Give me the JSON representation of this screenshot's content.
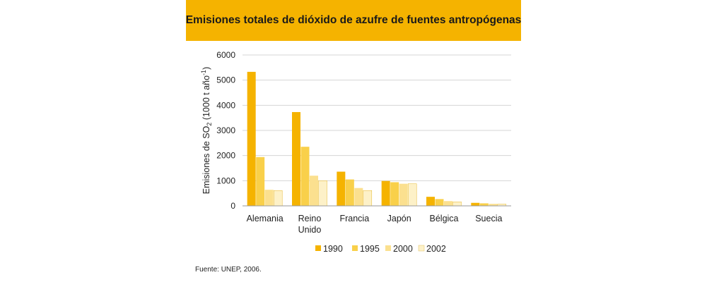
{
  "chart_data": {
    "type": "bar",
    "title": "Emisiones totales de dióxido de azufre de fuentes antropógenas",
    "ylabel": {
      "prefix": "Emisiones de SO",
      "sub": "2",
      "middle": " (1000 t año",
      "sup": "-1",
      "suffix": ")"
    },
    "ylim": [
      0,
      6000
    ],
    "yticks": [
      "0",
      "1000",
      "2000",
      "3000",
      "4000",
      "5000",
      "6000"
    ],
    "grid": true,
    "legend_position": "bottom",
    "categories": [
      "Alemania",
      "Reino Unido",
      "Francia",
      "Japón",
      "Bélgica",
      "Suecia"
    ],
    "category_lines": [
      [
        "Alemania"
      ],
      [
        "Reino",
        "Unido"
      ],
      [
        "Francia"
      ],
      [
        "Japón"
      ],
      [
        "Bélgica"
      ],
      [
        "Suecia"
      ]
    ],
    "series": [
      {
        "name": "1990",
        "color": "#f5b300",
        "values": [
          5330,
          3730,
          1360,
          990,
          360,
          120
        ]
      },
      {
        "name": "1995",
        "color": "#f9d04a",
        "values": [
          1940,
          2350,
          1050,
          940,
          270,
          100
        ]
      },
      {
        "name": "2000",
        "color": "#fbe08f",
        "values": [
          640,
          1200,
          710,
          880,
          190,
          80
        ]
      },
      {
        "name": "2002",
        "color": "#fdf1c8",
        "values": [
          610,
          1000,
          610,
          880,
          160,
          70
        ]
      }
    ],
    "source": "Fuente: UNEP, 2006."
  }
}
